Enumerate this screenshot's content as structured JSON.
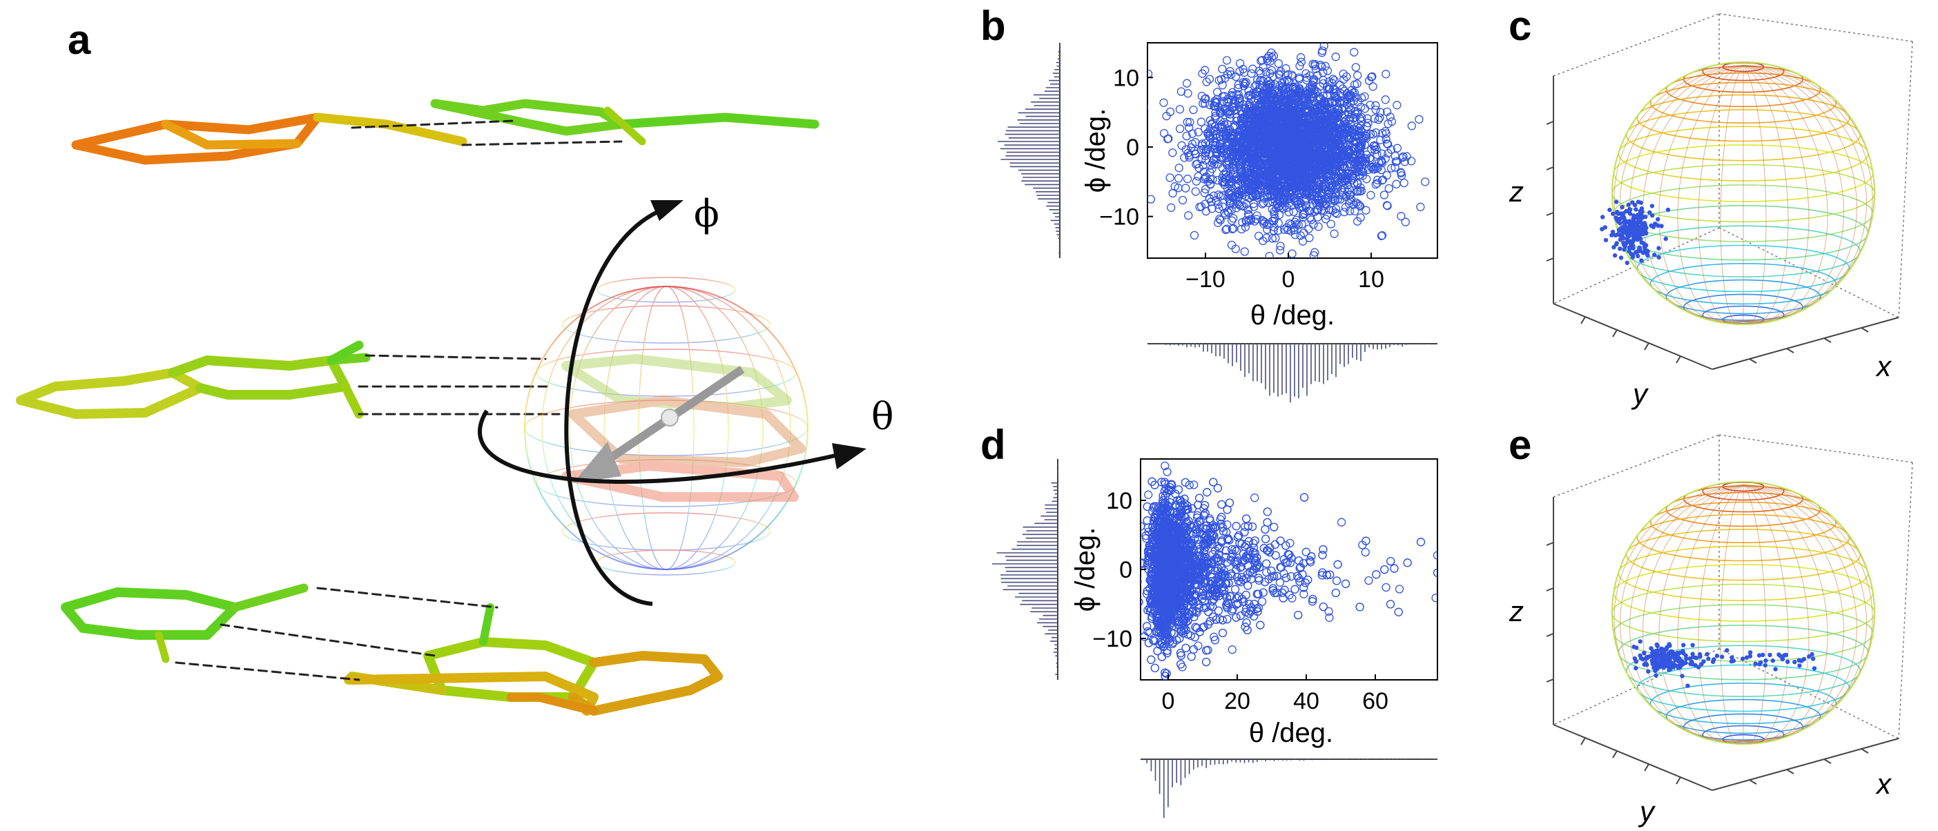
{
  "figure": {
    "panel_labels": {
      "a": "a",
      "b": "b",
      "c": "c",
      "d": "d",
      "e": "e"
    },
    "panel_a": {
      "phi_symbol": "ϕ",
      "theta_symbol": "θ"
    },
    "panel_c": {
      "x_label": "x",
      "y_label": "y",
      "z_label": "z"
    },
    "panel_e": {
      "x_label": "x",
      "y_label": "y",
      "z_label": "z"
    },
    "colors": {
      "scatter": "#3355e0",
      "hist": "#4a4f7a",
      "arrow": "#111111"
    }
  },
  "chart_data": [
    {
      "id": "b",
      "type": "scatter",
      "xlabel": "θ /deg.",
      "ylabel": "ϕ /deg.",
      "xlim": [
        -17,
        18
      ],
      "ylim": [
        -16,
        15
      ],
      "xticks": [
        -10,
        0,
        10
      ],
      "yticks": [
        -10,
        0,
        10
      ],
      "distribution": {
        "x_mean": 0,
        "x_sd": 5,
        "y_mean": 0,
        "y_sd": 5
      },
      "marginal_histograms": {
        "top_side": "phi (left)",
        "bottom": "theta"
      }
    },
    {
      "id": "d",
      "type": "scatter",
      "xlabel": "θ /deg.",
      "ylabel": "ϕ /deg.",
      "xlim": [
        -8,
        78
      ],
      "ylim": [
        -16,
        16
      ],
      "xticks": [
        0,
        20,
        40,
        60
      ],
      "yticks": [
        -10,
        0,
        10
      ],
      "distribution": {
        "x_mode": 0,
        "x_tail_max": 78,
        "y_mean": 0,
        "y_sd": 5
      },
      "marginal_histograms": {
        "left": "phi",
        "bottom": "theta"
      }
    }
  ]
}
